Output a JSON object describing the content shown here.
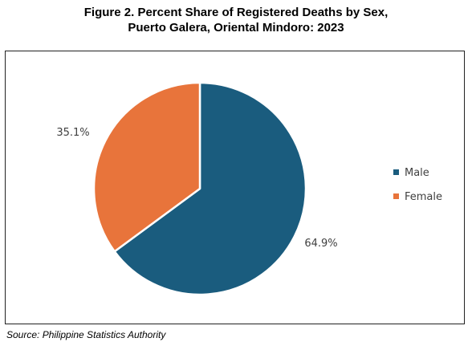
{
  "title_lines": [
    "Figure 2. Percent Share of Registered Deaths by Sex,",
    "Puerto Galera, Oriental Mindoro: 2023"
  ],
  "source": "Source: Philippine Statistics Authority",
  "chart_data": {
    "type": "pie",
    "title": "Figure 2. Percent Share of Registered Deaths by Sex, Puerto Galera, Oriental Mindoro: 2023",
    "categories": [
      "Male",
      "Female"
    ],
    "values": [
      64.9,
      35.1
    ],
    "data_labels": [
      "64.9%",
      "35.1%"
    ],
    "colors": [
      "#1a5c7e",
      "#e8743b"
    ],
    "start_angle_deg": 0,
    "direction": "clockwise",
    "legend": {
      "placement": "right",
      "entries": [
        "Male",
        "Female"
      ]
    }
  }
}
